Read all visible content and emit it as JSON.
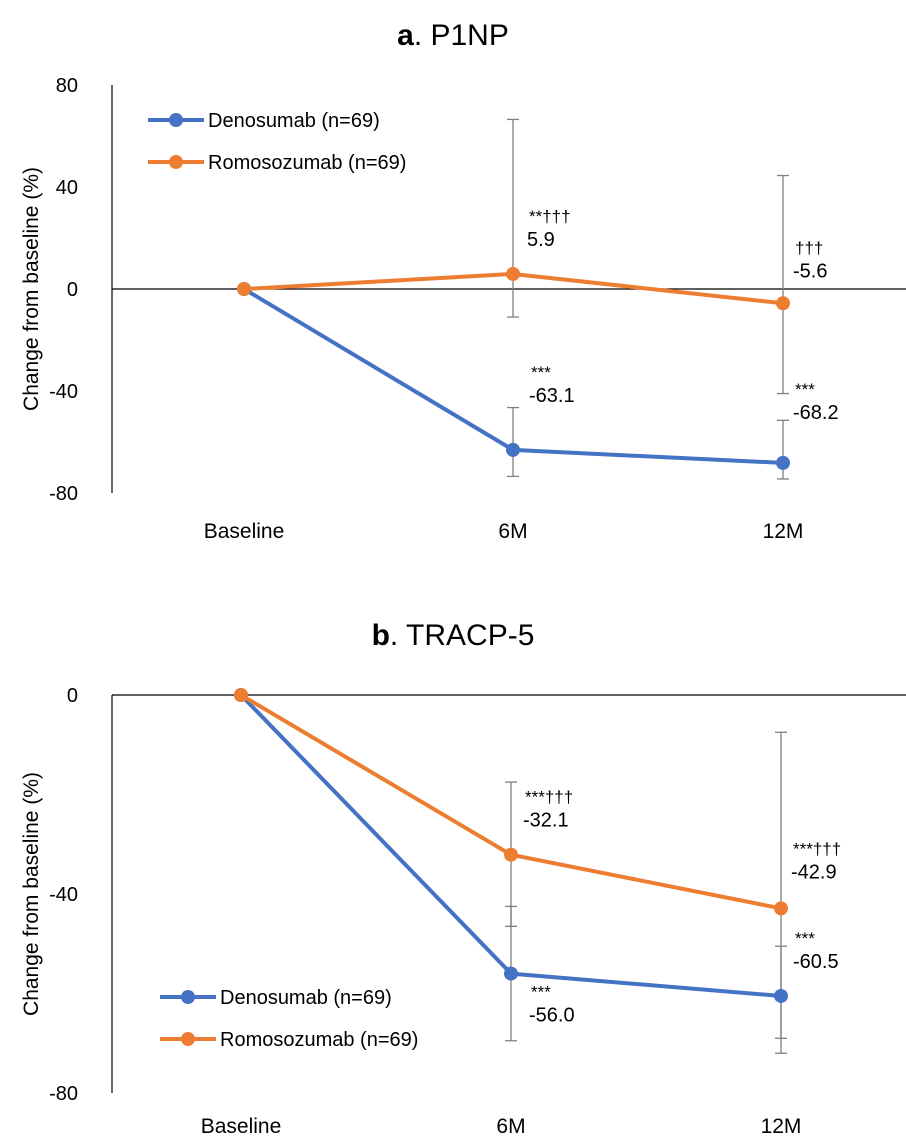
{
  "chart_data": [
    {
      "type": "line",
      "panel_letter": "a",
      "title": "P1NP",
      "ylabel": "Change from baseline (%)",
      "xlabel": "",
      "categories": [
        "Baseline",
        "6M",
        "12M"
      ],
      "ylim": [
        -80,
        80
      ],
      "yticks": [
        80,
        40,
        0,
        -40,
        -80
      ],
      "ytick_labels": [
        "80",
        "40",
        "0",
        "-40",
        "-80"
      ],
      "grid": false,
      "legend_position": "top-left",
      "series": [
        {
          "name": "Denosumab (n=69)",
          "color": "#4472C4",
          "values": [
            0,
            -63.1,
            -68.2
          ],
          "error_low": [
            null,
            -73.5,
            -74.5
          ],
          "error_high": [
            null,
            -46.5,
            -51.5
          ],
          "value_labels": [
            "",
            "-63.1",
            "-68.2"
          ],
          "significance": [
            "",
            "***",
            "***"
          ]
        },
        {
          "name": "Romosozumab (n=69)",
          "color": "#ED7D31",
          "values": [
            0,
            5.9,
            -5.6
          ],
          "error_low": [
            null,
            -11,
            -41
          ],
          "error_high": [
            null,
            66.5,
            44.5
          ],
          "value_labels": [
            "",
            "5.9",
            "-5.6"
          ],
          "significance": [
            "",
            "**†††",
            "†††"
          ]
        }
      ]
    },
    {
      "type": "line",
      "panel_letter": "b",
      "title": "TRACP-5",
      "ylabel": "Change from baseline (%)",
      "xlabel": "",
      "categories": [
        "Baseline",
        "6M",
        "12M"
      ],
      "ylim": [
        -80,
        0
      ],
      "yticks": [
        0,
        -40,
        -80
      ],
      "ytick_labels": [
        "0",
        "-40",
        "-80"
      ],
      "grid": false,
      "legend_position": "bottom-left",
      "series": [
        {
          "name": "Denosumab (n=69)",
          "color": "#4472C4",
          "values": [
            0,
            -56.0,
            -60.5
          ],
          "error_low": [
            null,
            -69.5,
            -69
          ],
          "error_high": [
            null,
            -42.5,
            -50.5
          ],
          "value_labels": [
            "",
            "-56.0",
            "-60.5"
          ],
          "significance": [
            "",
            "***",
            "***"
          ]
        },
        {
          "name": "Romosozumab (n=69)",
          "color": "#ED7D31",
          "values": [
            0,
            -32.1,
            -42.9
          ],
          "error_low": [
            null,
            -46.5,
            -72
          ],
          "error_high": [
            null,
            -17.5,
            -7.5
          ],
          "value_labels": [
            "",
            "-32.1",
            "-42.9"
          ],
          "significance": [
            "",
            "***†††",
            "***†††"
          ]
        }
      ]
    }
  ]
}
